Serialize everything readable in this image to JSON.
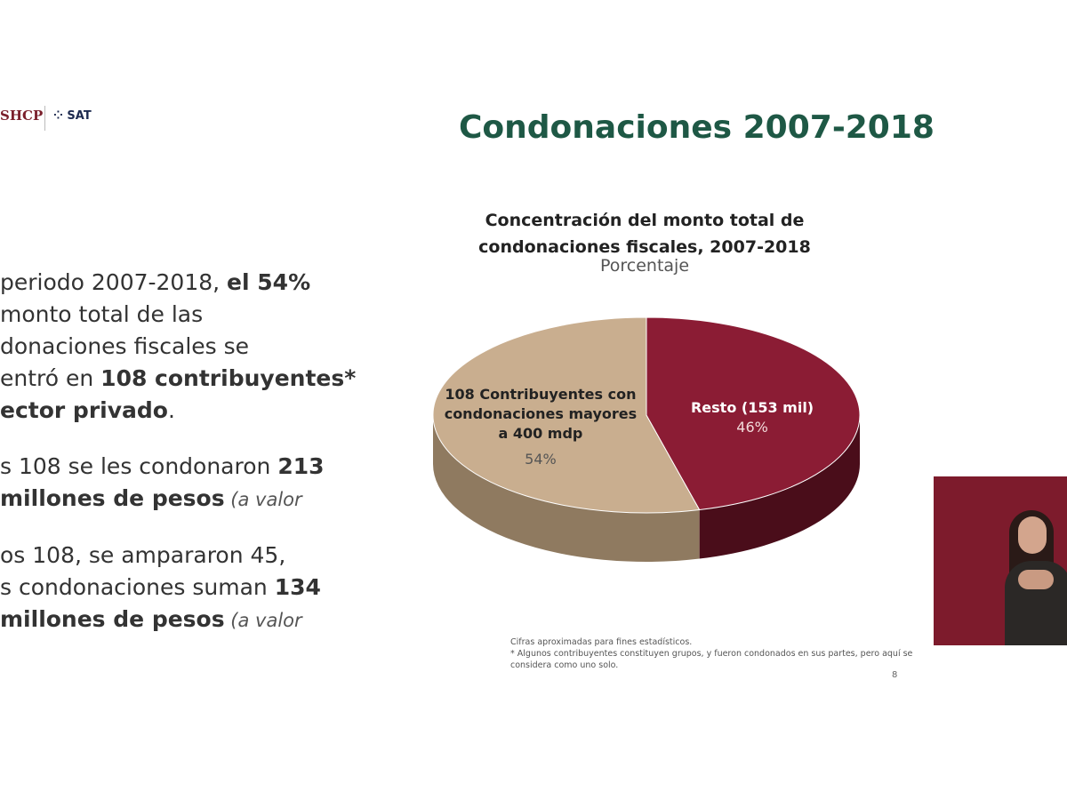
{
  "header": {
    "logo_left": "SHCP",
    "logo_right": "SAT"
  },
  "slide_title": "Condonaciones 2007-2018",
  "slide_text": {
    "paragraphs": [
      {
        "lines": [
          [
            {
              "text": "periodo 2007-2018, ",
              "weight": "normal"
            },
            {
              "text": "el 54%",
              "weight": "bold"
            }
          ],
          [
            {
              "text": "monto total de las",
              "weight": "normal"
            }
          ],
          [
            {
              "text": "donaciones fiscales se",
              "weight": "normal"
            }
          ],
          [
            {
              "text": "entró en ",
              "weight": "normal"
            },
            {
              "text": "108 contribuyentes*",
              "weight": "bold"
            }
          ],
          [
            {
              "text": "ector privado",
              "weight": "bold"
            },
            {
              "text": ".",
              "weight": "normal"
            }
          ]
        ]
      },
      {
        "lines": [
          [
            {
              "text": "s 108 se les condonaron ",
              "weight": "normal"
            },
            {
              "text": "213",
              "weight": "bold"
            }
          ],
          [
            {
              "text": "millones de pesos",
              "weight": "bold"
            },
            {
              "text": " (a valor",
              "weight": "italic"
            }
          ]
        ]
      },
      {
        "lines": [
          [
            {
              "text": "os 108, se ampararon 45,",
              "weight": "normal"
            }
          ],
          [
            {
              "text": "s condonaciones suman ",
              "weight": "normal"
            },
            {
              "text": "134",
              "weight": "bold"
            }
          ],
          [
            {
              "text": "millones de pesos",
              "weight": "bold"
            },
            {
              "text": " (a valor",
              "weight": "italic"
            }
          ]
        ]
      }
    ]
  },
  "chart_data": {
    "type": "pie",
    "title": "Concentración del monto total de condonaciones fiscales, 2007-2018",
    "subtitle": "Porcentaje",
    "categories": [
      "108 Contribuyentes con condonaciones mayores a 400 mdp",
      "Resto (153 mil)"
    ],
    "values": [
      54,
      46
    ],
    "value_labels": [
      "54%",
      "46%"
    ],
    "colors": [
      "#c9ae8f",
      "#8b1c34"
    ],
    "side_colors": [
      "#8f7a60",
      "#4a0d1a"
    ]
  },
  "footnotes": [
    "Cifras aproximadas para fines estadísticos.",
    "* Algunos contribuyentes constituyen grupos, y fueron condonados en sus partes, pero aquí se considera como uno solo."
  ],
  "page_number": "8"
}
